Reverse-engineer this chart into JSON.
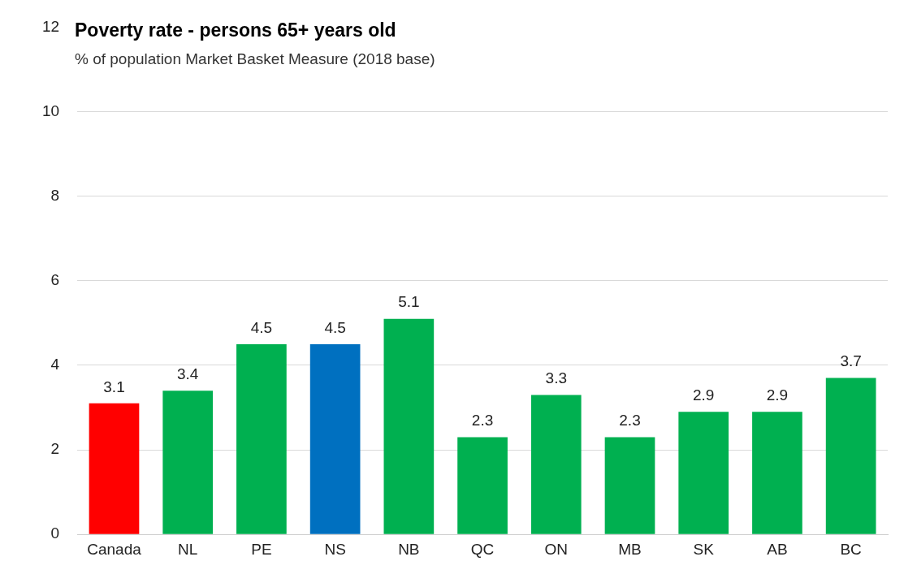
{
  "chart_data": {
    "type": "bar",
    "title": "Poverty rate - persons 65+ years old",
    "subtitle": "% of population Market Basket Measure (2018 base)",
    "categories": [
      "Canada",
      "NL",
      "PE",
      "NS",
      "NB",
      "QC",
      "ON",
      "MB",
      "SK",
      "AB",
      "BC"
    ],
    "values": [
      3.1,
      3.4,
      4.5,
      4.5,
      5.1,
      2.3,
      3.3,
      2.3,
      2.9,
      2.9,
      3.7
    ],
    "colors": [
      "#ff0000",
      "#00b050",
      "#00b050",
      "#0070c0",
      "#00b050",
      "#00b050",
      "#00b050",
      "#00b050",
      "#00b050",
      "#00b050",
      "#00b050"
    ],
    "ylim": [
      0,
      12
    ],
    "yticks": [
      0,
      2,
      4,
      6,
      8,
      10,
      12
    ],
    "grid": "y",
    "data_labels": true,
    "legend": false
  }
}
